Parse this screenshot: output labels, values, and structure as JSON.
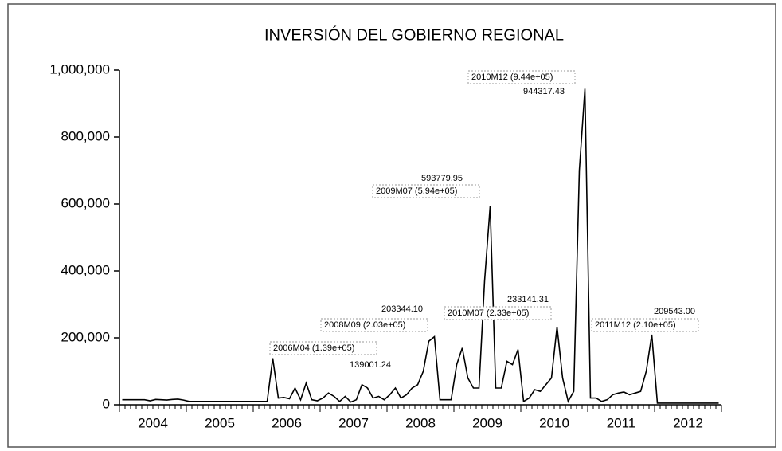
{
  "chart_data": {
    "type": "line",
    "title": "INVERSIÓN DEL GOBIERNO REGIONAL",
    "categories": [
      "2004M01",
      "2004M02",
      "2004M03",
      "2004M04",
      "2004M05",
      "2004M06",
      "2004M07",
      "2004M08",
      "2004M09",
      "2004M10",
      "2004M11",
      "2004M12",
      "2005M01",
      "2005M02",
      "2005M03",
      "2005M04",
      "2005M05",
      "2005M06",
      "2005M07",
      "2005M08",
      "2005M09",
      "2005M10",
      "2005M11",
      "2005M12",
      "2006M01",
      "2006M02",
      "2006M03",
      "2006M04",
      "2006M05",
      "2006M06",
      "2006M07",
      "2006M08",
      "2006M09",
      "2006M10",
      "2006M11",
      "2006M12",
      "2007M01",
      "2007M02",
      "2007M03",
      "2007M04",
      "2007M05",
      "2007M06",
      "2007M07",
      "2007M08",
      "2007M09",
      "2007M10",
      "2007M11",
      "2007M12",
      "2008M01",
      "2008M02",
      "2008M03",
      "2008M04",
      "2008M05",
      "2008M06",
      "2008M07",
      "2008M08",
      "2008M09",
      "2008M10",
      "2008M11",
      "2008M12",
      "2009M01",
      "2009M02",
      "2009M03",
      "2009M04",
      "2009M05",
      "2009M06",
      "2009M07",
      "2009M08",
      "2009M09",
      "2009M10",
      "2009M11",
      "2009M12",
      "2010M01",
      "2010M02",
      "2010M03",
      "2010M04",
      "2010M05",
      "2010M06",
      "2010M07",
      "2010M08",
      "2010M09",
      "2010M10",
      "2010M11",
      "2010M12",
      "2011M01",
      "2011M02",
      "2011M03",
      "2011M04",
      "2011M05",
      "2011M06",
      "2011M07",
      "2011M08",
      "2011M09",
      "2011M10",
      "2011M11",
      "2011M12",
      "2012M01",
      "2012M02",
      "2012M03",
      "2012M04",
      "2012M05",
      "2012M06",
      "2012M07",
      "2012M08",
      "2012M09",
      "2012M10",
      "2012M11",
      "2012M12"
    ],
    "year_labels": [
      "2004",
      "2005",
      "2006",
      "2007",
      "2008",
      "2009",
      "2010",
      "2011",
      "2012"
    ],
    "series": [
      {
        "color": "#000000",
        "values": [
          15000,
          15000,
          15000,
          15000,
          15000,
          12000,
          16000,
          15000,
          14000,
          16000,
          17000,
          14000,
          10000,
          10000,
          10000,
          10000,
          10000,
          10000,
          10000,
          10000,
          10000,
          10000,
          10000,
          10000,
          10000,
          10000,
          10000,
          139001.24,
          20000,
          22000,
          18000,
          50000,
          15000,
          65000,
          15000,
          12000,
          20000,
          35000,
          25000,
          10000,
          25000,
          8000,
          15000,
          60000,
          50000,
          20000,
          25000,
          15000,
          30000,
          50000,
          20000,
          30000,
          50000,
          60000,
          100000,
          190000,
          203344.1,
          15000,
          15000,
          15000,
          120000,
          170000,
          80000,
          50000,
          50000,
          370000,
          593779.95,
          50000,
          50000,
          130000,
          120000,
          165000,
          10000,
          20000,
          45000,
          40000,
          60000,
          80000,
          233141.31,
          80000,
          10000,
          40000,
          700000,
          944317.43,
          20000,
          20000,
          10000,
          15000,
          30000,
          35000,
          38000,
          30000,
          35000,
          40000,
          100000,
          209543.0,
          5000,
          5000,
          5000,
          5000,
          5000,
          5000,
          5000,
          5000,
          5000,
          5000,
          5000,
          5000
        ],
        "value_labels": [
          null,
          null,
          null,
          null,
          null,
          null,
          null,
          null,
          null,
          null,
          null,
          null,
          null,
          null,
          null,
          null,
          null,
          null,
          null,
          null,
          null,
          null,
          null,
          null,
          null,
          null,
          null,
          "139001.24",
          null,
          null,
          null,
          null,
          null,
          null,
          null,
          null,
          null,
          null,
          null,
          null,
          null,
          null,
          null,
          null,
          null,
          null,
          null,
          null,
          null,
          null,
          null,
          null,
          null,
          null,
          null,
          null,
          "203344.10",
          null,
          null,
          null,
          null,
          null,
          null,
          null,
          null,
          null,
          "593779.95",
          null,
          null,
          null,
          null,
          null,
          null,
          null,
          null,
          null,
          null,
          null,
          "233141.31",
          null,
          null,
          null,
          null,
          "944317.43",
          null,
          null,
          null,
          null,
          null,
          null,
          null,
          null,
          null,
          null,
          null,
          "209543.00",
          null,
          null,
          null,
          null,
          null,
          null,
          null,
          null,
          null,
          null,
          null,
          null
        ]
      }
    ],
    "annotations": [
      "2006M04 (1.39e+05)",
      "2008M09 (2.03e+05)",
      "2009M07 (5.94e+05)",
      "2010M07 (2.33e+05)",
      "2010M12 (9.44e+05)",
      "2011M12 (2.10e+05)"
    ],
    "ylim": [
      0,
      1000000
    ],
    "yticks": [
      0,
      {
        "value": 200000,
        "label": "200,000"
      },
      {
        "value": 400000,
        "label": "400,000"
      },
      {
        "value": 600000,
        "label": "600,000"
      },
      {
        "value": 800000,
        "label": "800,000"
      },
      {
        "value": 1000000,
        "label": "1,000,000"
      }
    ]
  }
}
